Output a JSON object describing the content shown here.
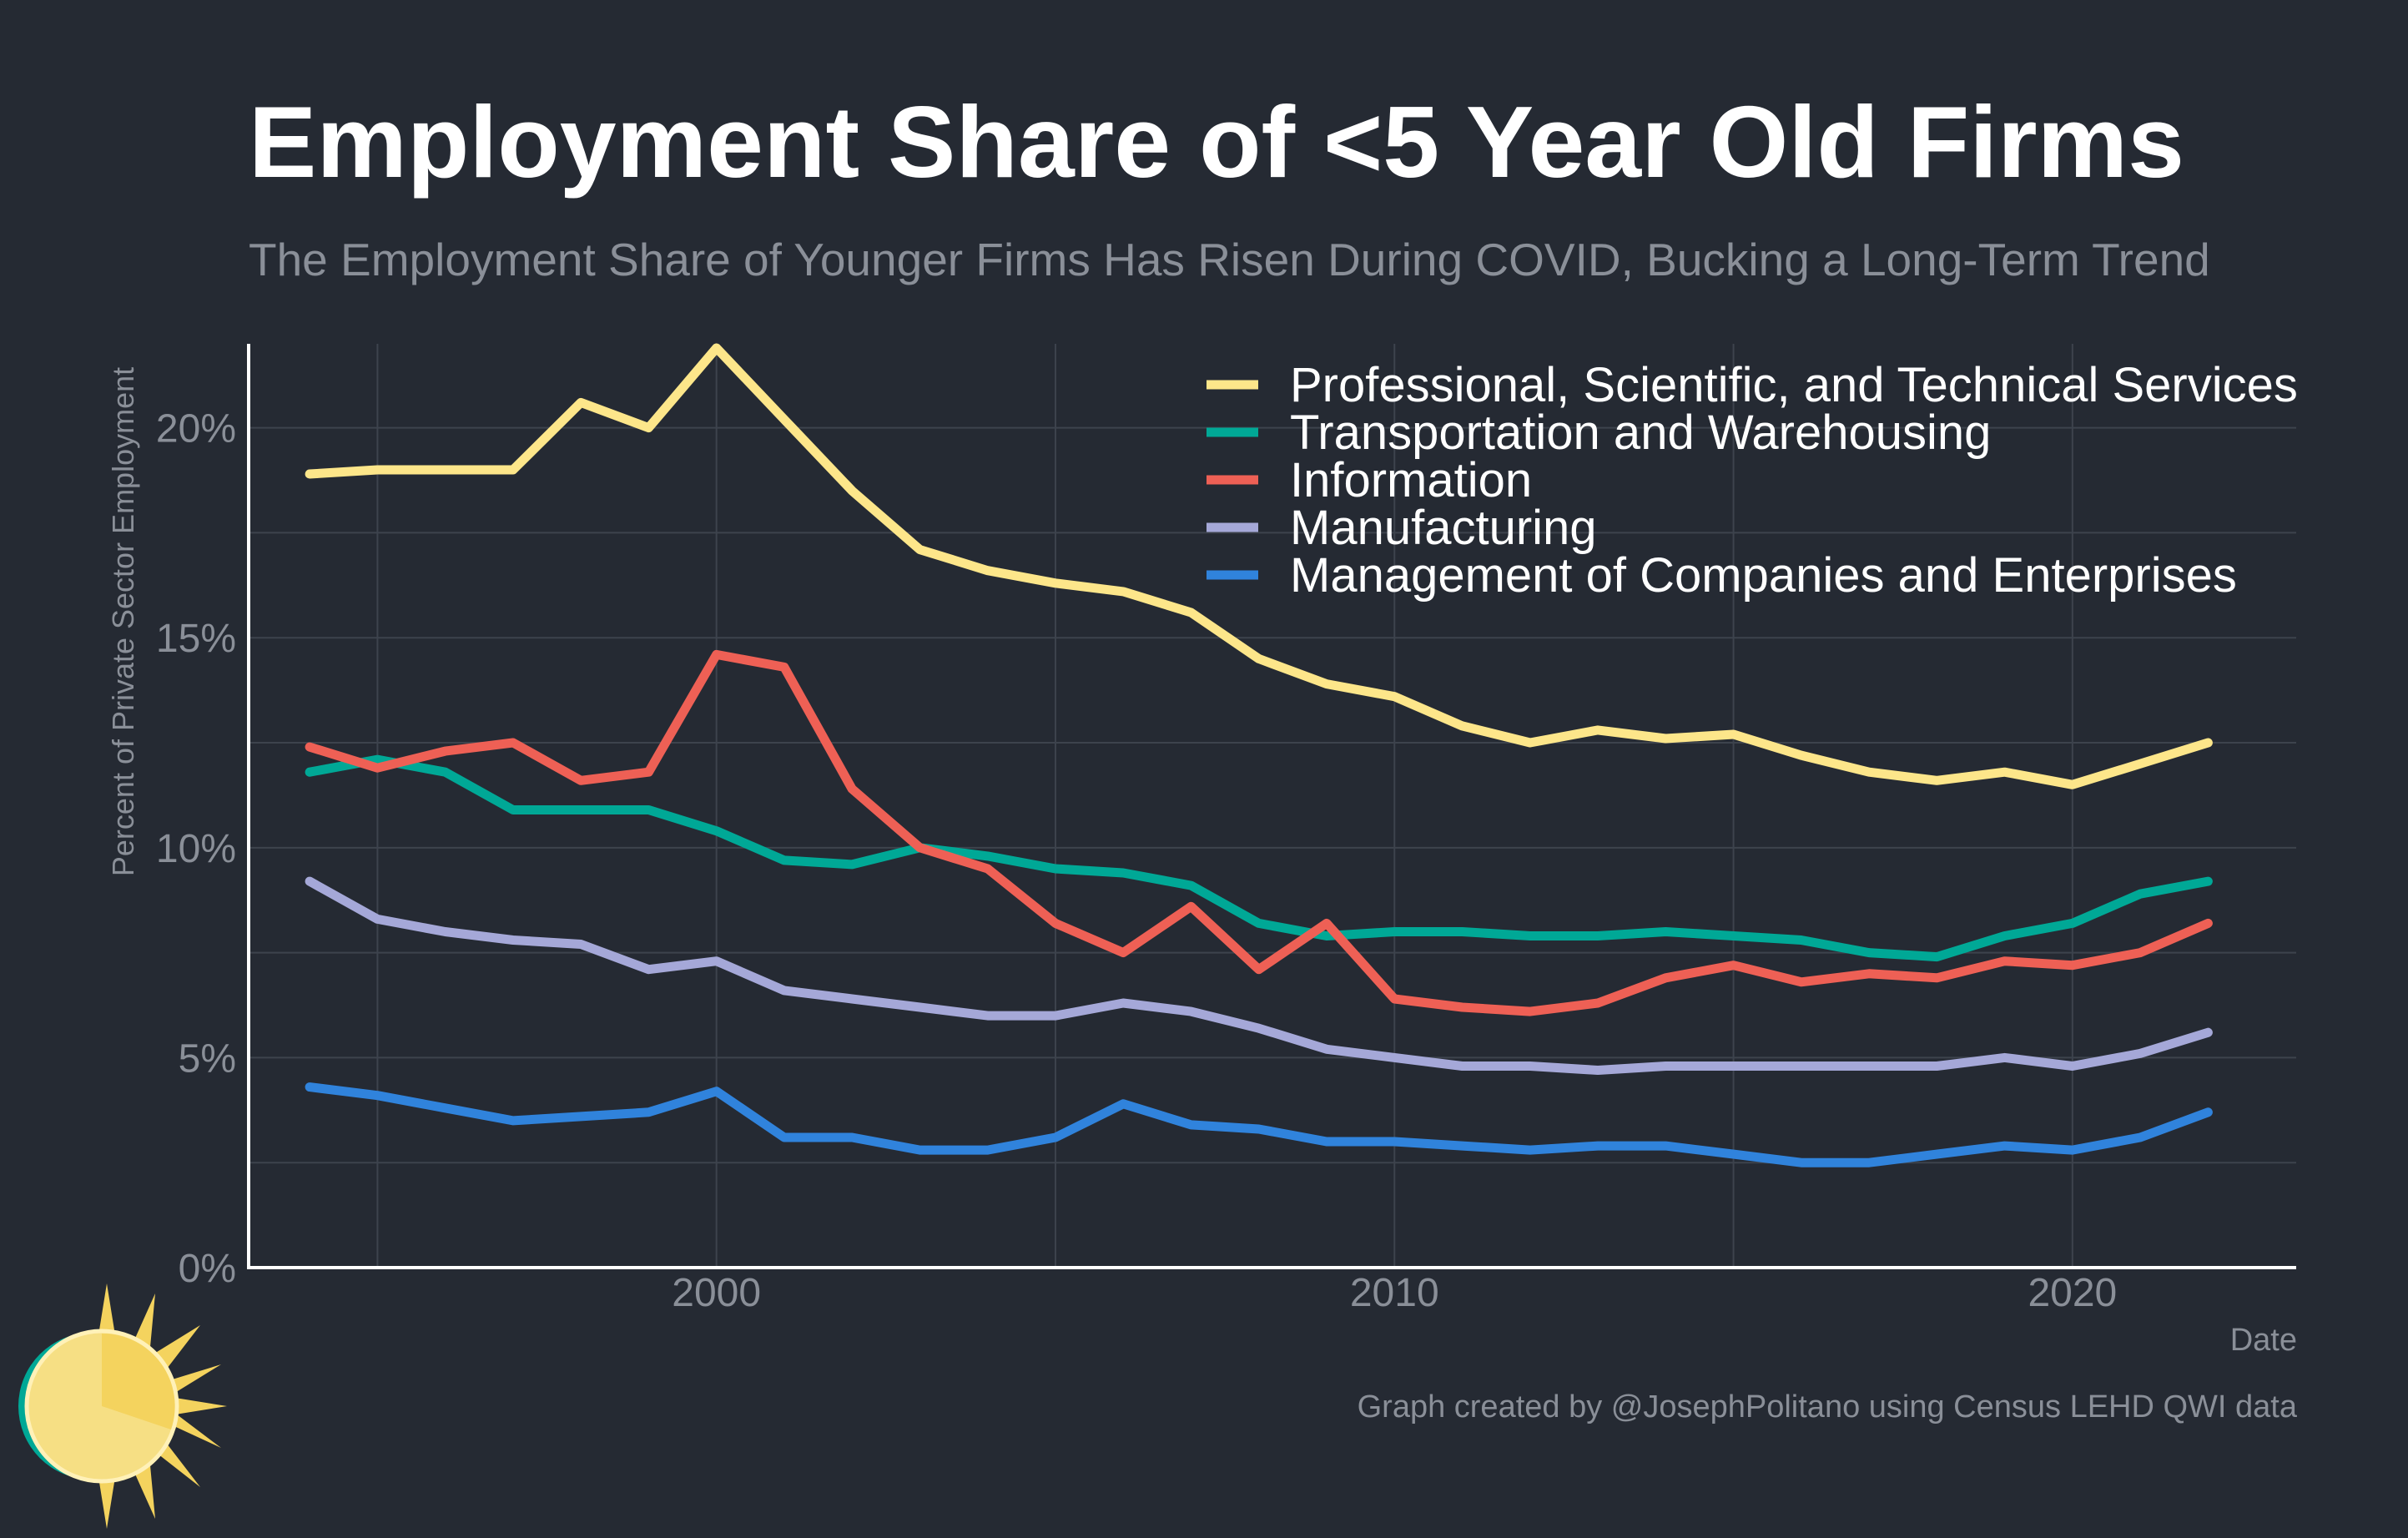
{
  "chart_data": {
    "type": "line",
    "title": "Employment Share of <5 Year Old Firms",
    "subtitle": "The Employment Share of Younger Firms Has Risen During COVID, Bucking a Long-Term Trend",
    "xlabel": "Date",
    "ylabel": "Percent of Private Sector Employment",
    "caption": "Graph created by @JosephPolitano using Census LEHD QWI data",
    "xlim": [
      1993.1,
      2023.3
    ],
    "ylim": [
      0,
      22
    ],
    "x_ticks": [
      2000,
      2010,
      2020
    ],
    "x_tick_labels": [
      "2000",
      "2010",
      "2020"
    ],
    "y_ticks": [
      0,
      5,
      10,
      15,
      20
    ],
    "y_tick_labels": [
      "0%",
      "5%",
      "10%",
      "15%",
      "20%"
    ],
    "grid": true,
    "legend_position": "top-right",
    "x": [
      1994,
      1995,
      1996,
      1997,
      1998,
      1999,
      2000,
      2001,
      2002,
      2003,
      2004,
      2005,
      2006,
      2007,
      2008,
      2009,
      2010,
      2011,
      2012,
      2013,
      2014,
      2015,
      2016,
      2017,
      2018,
      2019,
      2020,
      2021,
      2022
    ],
    "series": [
      {
        "name": "Professional, Scientific, and Technical Services",
        "color": "#fde68a",
        "values": [
          18.9,
          19.0,
          19.0,
          19.0,
          20.6,
          20.0,
          21.9,
          20.2,
          18.5,
          17.1,
          16.6,
          16.3,
          16.1,
          15.6,
          14.5,
          13.9,
          13.6,
          12.9,
          12.5,
          12.8,
          12.6,
          12.7,
          12.2,
          11.8,
          11.6,
          11.8,
          11.5,
          12.0,
          12.5
        ]
      },
      {
        "name": "Transportation and Warehousing",
        "color": "#00a896",
        "values": [
          11.8,
          12.1,
          11.8,
          10.9,
          10.9,
          10.9,
          10.4,
          9.7,
          9.6,
          10.0,
          9.8,
          9.5,
          9.4,
          9.1,
          8.2,
          7.9,
          8.0,
          8.0,
          7.9,
          7.9,
          8.0,
          7.9,
          7.8,
          7.5,
          7.4,
          7.9,
          8.2,
          8.9,
          9.2
        ]
      },
      {
        "name": "Information",
        "color": "#ee6055",
        "values": [
          12.4,
          11.9,
          12.3,
          12.5,
          11.6,
          11.8,
          14.6,
          14.3,
          11.4,
          10.0,
          9.5,
          8.2,
          7.5,
          8.6,
          7.1,
          8.2,
          6.4,
          6.2,
          6.1,
          6.3,
          6.9,
          7.2,
          6.8,
          7.0,
          6.9,
          7.3,
          7.2,
          7.5,
          8.2
        ]
      },
      {
        "name": "Manufacturing",
        "color": "#a5a8d8",
        "values": [
          9.2,
          8.3,
          8.0,
          7.8,
          7.7,
          7.1,
          7.3,
          6.6,
          6.4,
          6.2,
          6.0,
          6.0,
          6.3,
          6.1,
          5.7,
          5.2,
          5.0,
          4.8,
          4.8,
          4.7,
          4.8,
          4.8,
          4.8,
          4.8,
          4.8,
          5.0,
          4.8,
          5.1,
          5.6
        ]
      },
      {
        "name": "Management of Companies and Enterprises",
        "color": "#3083dc",
        "values": [
          4.3,
          4.1,
          3.8,
          3.5,
          3.6,
          3.7,
          4.2,
          3.1,
          3.1,
          2.8,
          2.8,
          3.1,
          3.9,
          3.4,
          3.3,
          3.0,
          3.0,
          2.9,
          2.8,
          2.9,
          2.9,
          2.7,
          2.5,
          2.5,
          2.7,
          2.9,
          2.8,
          3.1,
          3.7
        ]
      }
    ]
  },
  "logo": {
    "icon": "sun-icon"
  }
}
